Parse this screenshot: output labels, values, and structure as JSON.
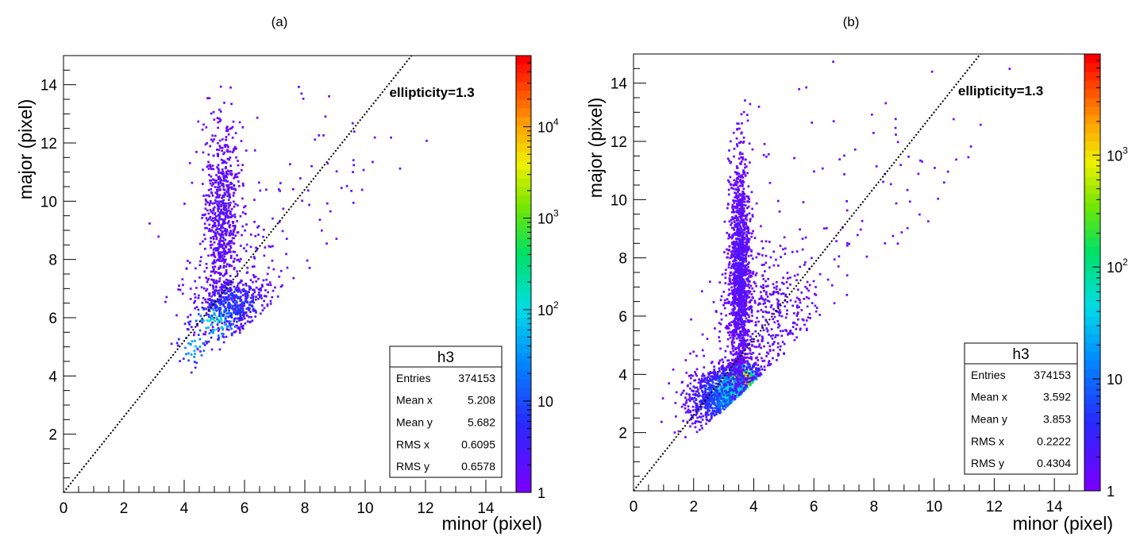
{
  "chart_data": [
    {
      "type": "heatmap",
      "panel_label": "(a)",
      "xlabel": "minor (pixel)",
      "ylabel": "major (pixel)",
      "xlim": [
        0,
        15
      ],
      "ylim": [
        0,
        15
      ],
      "x_ticks": [
        "0",
        "2",
        "4",
        "6",
        "8",
        "10",
        "12",
        "14"
      ],
      "y_ticks": [
        "2",
        "4",
        "6",
        "8",
        "10",
        "12",
        "14"
      ],
      "annotation": "ellipticity=1.3",
      "line": {
        "slope": 1.3,
        "style": "dotted"
      },
      "colorbar": {
        "scale": "log",
        "max": 60000,
        "labels": [
          {
            "base": "1",
            "exp": "",
            "value": 1
          },
          {
            "base": "10",
            "exp": "",
            "value": 10
          },
          {
            "base": "10",
            "exp": "2",
            "value": 100
          },
          {
            "base": "10",
            "exp": "3",
            "value": 1000
          },
          {
            "base": "10",
            "exp": "4",
            "value": 10000
          }
        ]
      },
      "stats": {
        "title": "h3",
        "rows": [
          {
            "label": "Entries",
            "value": "374153"
          },
          {
            "label": "Mean x",
            "value": "5.208"
          },
          {
            "label": "Mean y",
            "value": "5.682"
          },
          {
            "label": "RMS x",
            "value": "0.6095"
          },
          {
            "label": "RMS y",
            "value": "0.6578"
          }
        ]
      },
      "clusters": [
        {
          "cx": 5.2,
          "cy": 9.5,
          "sx": 0.3,
          "sy": 1.6,
          "n": 700,
          "level": 0.04
        },
        {
          "cx": 5.6,
          "cy": 6.5,
          "sx": 0.6,
          "sy": 0.5,
          "n": 450,
          "level": 0.18
        },
        {
          "cx": 5.0,
          "cy": 5.9,
          "sx": 0.5,
          "sy": 0.4,
          "n": 110,
          "level": 0.45
        },
        {
          "cx": 4.3,
          "cy": 5.0,
          "sx": 0.4,
          "sy": 0.4,
          "n": 40,
          "level": 0.35
        },
        {
          "cx": 6.0,
          "cy": 7.6,
          "sx": 1.2,
          "sy": 1.6,
          "n": 160,
          "level": 0.03
        },
        {
          "cx": 9.0,
          "cy": 11.0,
          "sx": 2.0,
          "sy": 1.9,
          "n": 60,
          "level": 0.02
        }
      ]
    },
    {
      "type": "heatmap",
      "panel_label": "(b)",
      "xlabel": "minor (pixel)",
      "ylabel": "major (pixel)",
      "xlim": [
        0,
        15
      ],
      "ylim": [
        0,
        15
      ],
      "x_ticks": [
        "0",
        "2",
        "4",
        "6",
        "8",
        "10",
        "12",
        "14"
      ],
      "y_ticks": [
        "2",
        "4",
        "6",
        "8",
        "10",
        "12",
        "14"
      ],
      "annotation": "ellipticity=1.3",
      "line": {
        "slope": 1.3,
        "style": "dotted"
      },
      "colorbar": {
        "scale": "log",
        "max": 8000,
        "labels": [
          {
            "base": "1",
            "exp": "",
            "value": 1
          },
          {
            "base": "10",
            "exp": "",
            "value": 10
          },
          {
            "base": "10",
            "exp": "2",
            "value": 100
          },
          {
            "base": "10",
            "exp": "3",
            "value": 1000
          }
        ]
      },
      "stats": {
        "title": "h3",
        "rows": [
          {
            "label": "Entries",
            "value": "374153"
          },
          {
            "label": "Mean x",
            "value": "3.592"
          },
          {
            "label": "Mean y",
            "value": "3.853"
          },
          {
            "label": "RMS x",
            "value": "0.2222"
          },
          {
            "label": "RMS y",
            "value": "0.4304"
          }
        ]
      },
      "clusters": [
        {
          "cx": 3.55,
          "cy": 3.85,
          "sx": 0.35,
          "sy": 0.3,
          "n": 700,
          "level": 0.95
        },
        {
          "cx": 3.2,
          "cy": 3.4,
          "sx": 0.55,
          "sy": 0.45,
          "n": 900,
          "level": 0.45
        },
        {
          "cx": 3.0,
          "cy": 3.1,
          "sx": 0.7,
          "sy": 0.6,
          "n": 600,
          "level": 0.2
        },
        {
          "cx": 3.5,
          "cy": 7.5,
          "sx": 0.17,
          "sy": 2.0,
          "n": 1400,
          "level": 0.06
        },
        {
          "cx": 4.5,
          "cy": 6.0,
          "sx": 0.9,
          "sy": 1.3,
          "n": 500,
          "level": 0.03
        },
        {
          "cx": 8.0,
          "cy": 10.0,
          "sx": 2.8,
          "sy": 2.6,
          "n": 140,
          "level": 0.02
        }
      ]
    }
  ]
}
